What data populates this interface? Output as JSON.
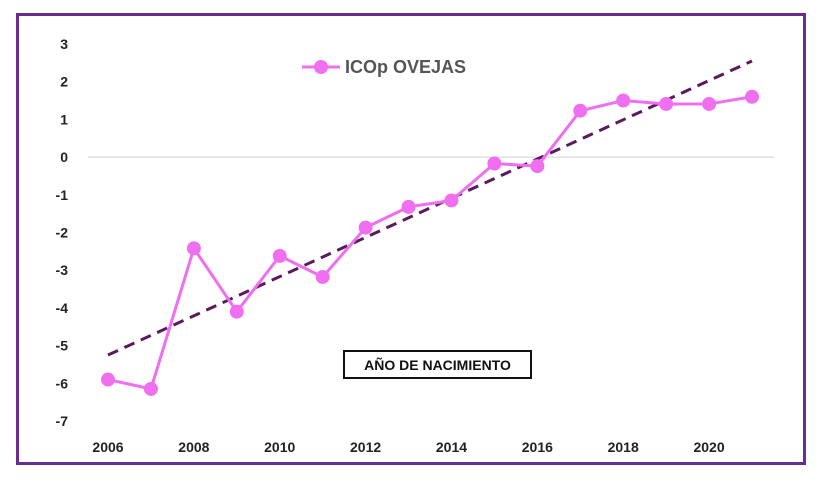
{
  "chart_data": {
    "type": "line",
    "x": [
      2006,
      2007,
      2008,
      2009,
      2010,
      2011,
      2012,
      2013,
      2014,
      2015,
      2016,
      2017,
      2018,
      2019,
      2020,
      2021
    ],
    "series": [
      {
        "name": "ICOp OVEJAS",
        "values": [
          -5.9,
          -6.15,
          -2.42,
          -4.1,
          -2.62,
          -3.18,
          -1.87,
          -1.32,
          -1.15,
          -0.17,
          -0.24,
          1.23,
          1.5,
          1.41,
          1.41,
          1.6
        ],
        "color": "#f06ef0",
        "marker": "circle"
      }
    ],
    "trendline": {
      "type": "linear",
      "color": "#5b1a5e",
      "style": "dashed",
      "start": [
        2006,
        -5.25
      ],
      "end": [
        2021,
        2.55
      ]
    },
    "x_ticks": [
      "2006",
      "2008",
      "2010",
      "2012",
      "2014",
      "2016",
      "2018",
      "2020"
    ],
    "y_ticks": [
      "3",
      "2",
      "1",
      "0",
      "-1",
      "-2",
      "-3",
      "-4",
      "-5",
      "-6",
      "-7"
    ],
    "xlim": [
      2006,
      2021
    ],
    "ylim": [
      -7,
      3
    ],
    "xlabel": "AÑO DE NACIMIENTO",
    "ylabel": "",
    "title": "",
    "legend_position": "top-center",
    "grid": "zero-line-only",
    "frame_color": "#6a2c91"
  }
}
